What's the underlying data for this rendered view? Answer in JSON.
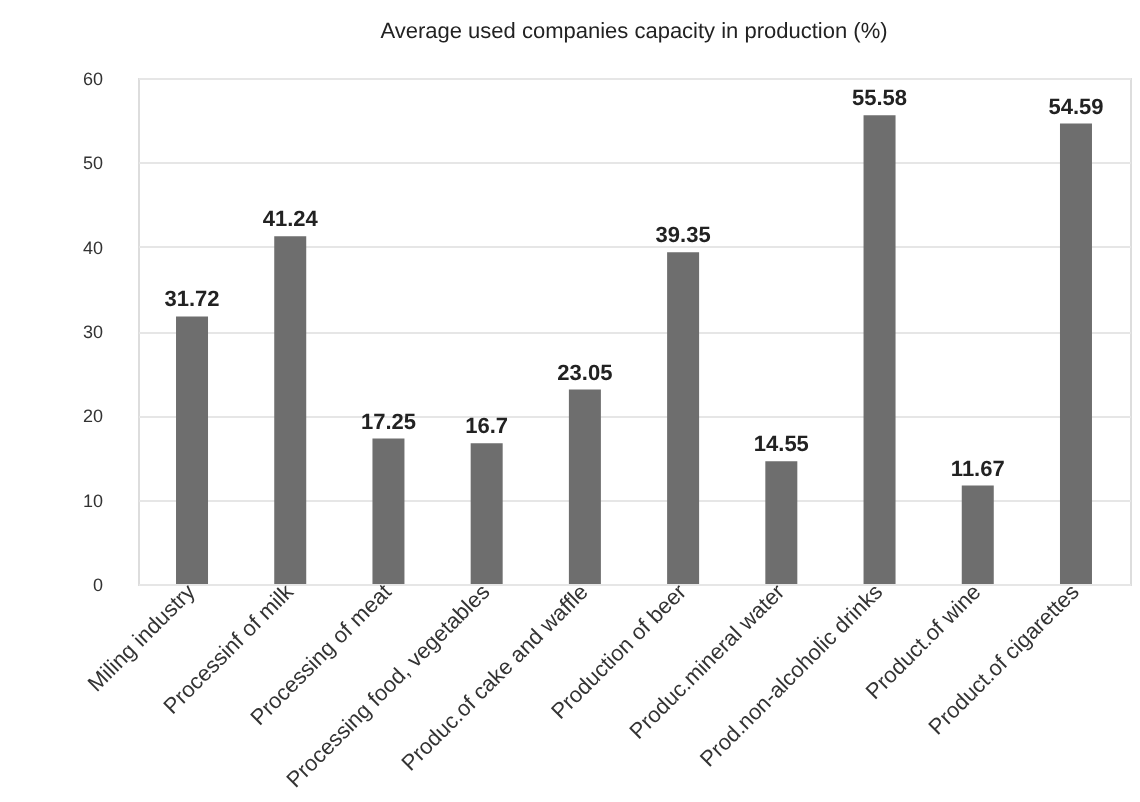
{
  "chart_data": {
    "type": "bar",
    "title": "Average used companies capacity in production (%)",
    "categories": [
      "Miling industry",
      "Processinf of milk",
      "Processing of meat",
      "Processing food, vegetables",
      "Produc.of cake and waffle",
      "Production of beer",
      "Produc.mineral water",
      "Prod.non-alcoholic drinks",
      "Product.of wine",
      "Product.of cigarettes"
    ],
    "values": [
      31.72,
      41.24,
      17.25,
      16.7,
      23.05,
      39.35,
      14.55,
      55.58,
      11.67,
      54.59
    ],
    "color": "#6e6e6e",
    "ylim": [
      0,
      60
    ],
    "yticks": [
      0,
      10,
      20,
      30,
      40,
      50,
      60
    ],
    "grid": "y",
    "data_labels": true
  }
}
